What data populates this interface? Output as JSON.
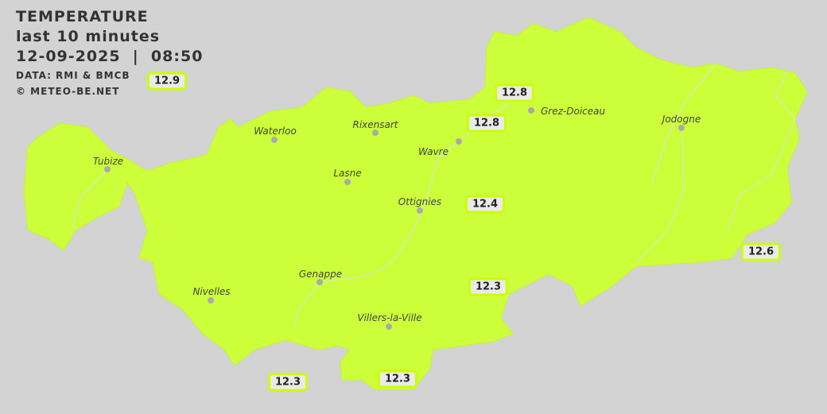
{
  "header": {
    "title": "TEMPERATURE",
    "period": "last 10 minutes",
    "datetime": "12-09-2025  |  08:50",
    "source": "DATA: RMI & BMCB",
    "copyright": "© METEO-BE.NET"
  },
  "colors": {
    "region_fill": "#ccff3a",
    "background": "#d3d3d3",
    "label_border": "#ccff00"
  },
  "cities": [
    {
      "name": "Tubize"
    },
    {
      "name": "Waterloo"
    },
    {
      "name": "Rixensart"
    },
    {
      "name": "Wavre"
    },
    {
      "name": "Grez-Doiceau"
    },
    {
      "name": "Jodogne"
    },
    {
      "name": "Lasne"
    },
    {
      "name": "Ottignies"
    },
    {
      "name": "Genappe"
    },
    {
      "name": "Nivelles"
    },
    {
      "name": "Villers-la-Ville"
    }
  ],
  "readings": [
    "12.9",
    "12.8",
    "12.8",
    "12.4",
    "12.6",
    "12.3",
    "12.3",
    "12.3"
  ]
}
